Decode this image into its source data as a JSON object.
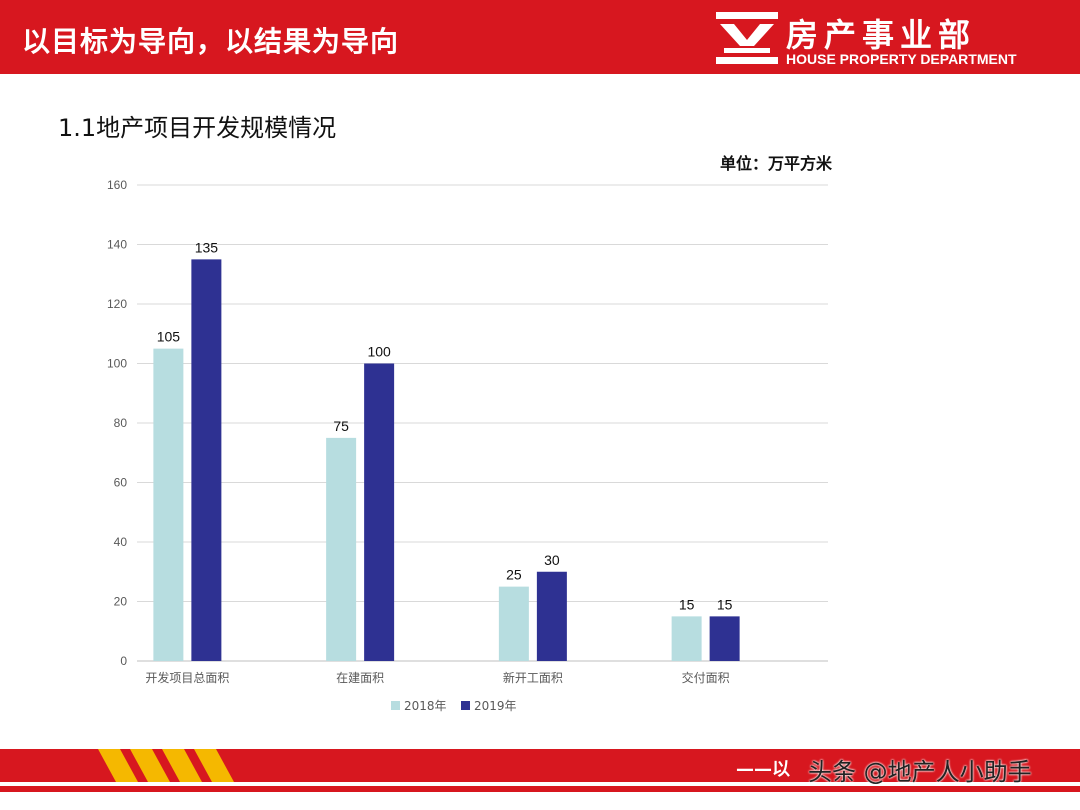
{
  "header": {
    "slogan": "以目标为导向，以结果为导向",
    "dept_cn": "房产事业部",
    "dept_en": "HOUSE PROPERTY DEPARTMENT",
    "brand_color": "#d7171f"
  },
  "section_title": "1.1地产项目开发规模情况",
  "unit_label": "单位：万平方米",
  "chart_data": {
    "type": "bar",
    "categories": [
      "开发项目总面积",
      "在建面积",
      "新开工面积",
      "交付面积"
    ],
    "series": [
      {
        "name": "2018年",
        "values": [
          105,
          75,
          25,
          15
        ],
        "color": "#b7dde0"
      },
      {
        "name": "2019年",
        "values": [
          135,
          100,
          30,
          15
        ],
        "color": "#2e3192"
      }
    ],
    "ylim": [
      0,
      160
    ],
    "yticks": [
      0,
      20,
      40,
      60,
      80,
      100,
      120,
      140,
      160
    ],
    "grid": true,
    "legend_position": "bottom",
    "data_labels": true
  },
  "footer": {
    "slogan": "——以",
    "watermark": "头条 @地产人小助手"
  }
}
